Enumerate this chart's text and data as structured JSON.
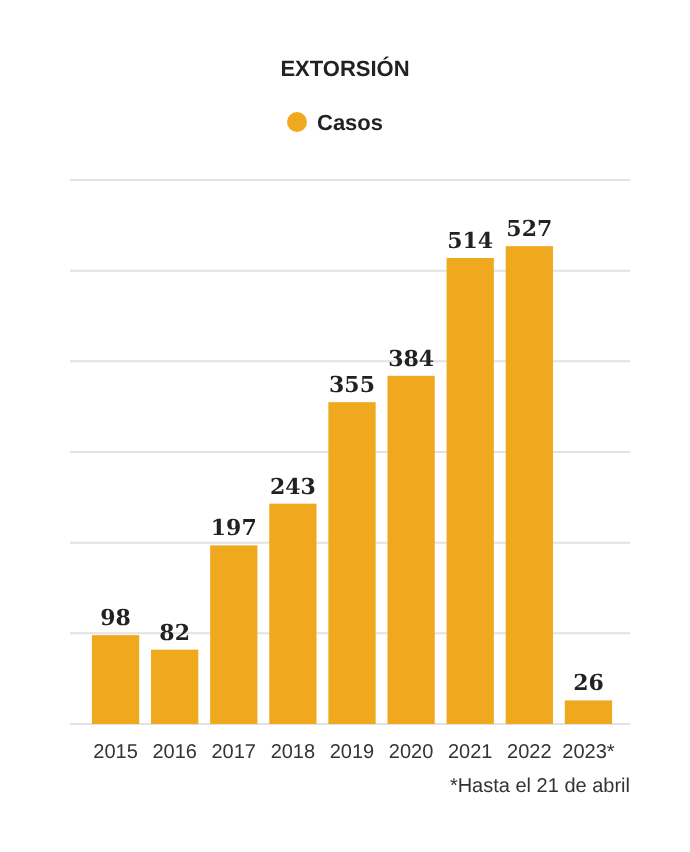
{
  "chart_data": {
    "type": "bar",
    "title": "EXTORSIÓN",
    "categories": [
      "2015",
      "2016",
      "2017",
      "2018",
      "2019",
      "2020",
      "2021",
      "2022",
      "2023*"
    ],
    "series": [
      {
        "name": "Casos",
        "color": "#f0a91e",
        "values": [
          98,
          82,
          197,
          243,
          355,
          384,
          514,
          527,
          26
        ]
      }
    ],
    "ylim": [
      0,
      600
    ],
    "yticks": [
      {
        "value": 0,
        "label": null
      },
      {
        "value": 100,
        "label": null
      },
      {
        "value": 200,
        "label": null
      },
      {
        "value": 300,
        "label": null
      },
      {
        "value": 400,
        "label": null
      },
      {
        "value": 500,
        "label": null
      },
      {
        "value": 600,
        "label": null
      }
    ],
    "grid": "y",
    "tick_labels": "x",
    "legend": "top",
    "data_labels": true,
    "annotations": [
      "*Hasta el 21 de abril"
    ]
  }
}
